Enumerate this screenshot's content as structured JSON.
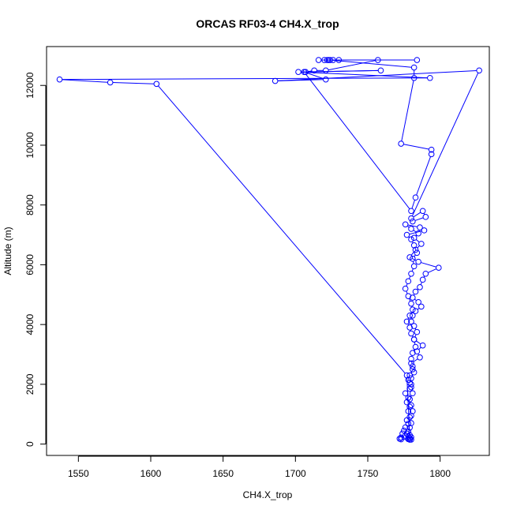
{
  "chart_data": {
    "type": "scatter",
    "title": "ORCAS RF03-4 CH4.X_trop",
    "xlabel": "CH4.X_trop",
    "ylabel": "Altitude (m)",
    "xlim": [
      1528,
      1834
    ],
    "ylim": [
      -380,
      13300
    ],
    "x_ticks": [
      1550,
      1600,
      1650,
      1700,
      1750,
      1800
    ],
    "y_ticks": [
      0,
      2000,
      4000,
      6000,
      8000,
      10000,
      12000
    ],
    "series": [
      {
        "marker": "open-circle",
        "line": true,
        "x": [
          1779,
          1778,
          1779,
          1780,
          1778,
          1779,
          1777,
          1778,
          1779,
          1780,
          1779,
          1778,
          1780,
          1779,
          1781,
          1780,
          1779,
          1780,
          1782,
          1781,
          1780,
          1781,
          1783,
          1782,
          1784,
          1782,
          1780,
          1781,
          1783,
          1787,
          1785,
          1781,
          1783,
          1786,
          1788,
          1790,
          1799,
          1785,
          1779,
          1783,
          1787,
          1782,
          1785,
          1780,
          1776,
          1786,
          1789,
          1777,
          1780,
          1782,
          1784,
          1781,
          1782,
          1780,
          1778,
          1776,
          1778,
          1780,
          1781,
          1779,
          1777,
          1779,
          1780,
          1782,
          1788,
          1784,
          1786,
          1780,
          1781,
          1779,
          1778,
          1780,
          1779,
          1776,
          1778,
          1777,
          1779,
          1781,
          1780,
          1777,
          1778,
          1776,
          1775,
          1774,
          1776,
          1773,
          1772,
          1773,
          1779,
          1780,
          1778,
          1779,
          1777,
          1604,
          1572,
          1537,
          1793,
          1702,
          1759,
          1707,
          1713,
          1721,
          1757,
          1784,
          1726,
          1716,
          1722,
          1720,
          1723,
          1730,
          1724,
          1782,
          1782,
          1773,
          1794,
          1794,
          1783,
          1780,
          1706,
          1721,
          1686,
          1827,
          1780,
          1788,
          1790,
          1781
        ],
        "y": [
          150,
          170,
          200,
          230,
          260,
          300,
          350,
          420,
          550,
          700,
          900,
          1100,
          1300,
          1500,
          1700,
          1900,
          2050,
          2200,
          2400,
          2600,
          2850,
          3050,
          3250,
          3500,
          3750,
          3950,
          4100,
          4300,
          4450,
          4600,
          4750,
          4900,
          5100,
          5250,
          5500,
          5700,
          5900,
          6100,
          6250,
          6500,
          6700,
          6900,
          7050,
          7200,
          7350,
          7250,
          7150,
          7000,
          6850,
          6650,
          6400,
          6200,
          5950,
          5700,
          5450,
          5200,
          4950,
          4700,
          4500,
          4300,
          4100,
          3900,
          3700,
          3500,
          3300,
          3100,
          2900,
          2700,
          2500,
          2300,
          2150,
          2000,
          1850,
          1700,
          1550,
          1400,
          1250,
          1100,
          950,
          800,
          680,
          560,
          450,
          350,
          280,
          220,
          180,
          160,
          150,
          150,
          170,
          200,
          2300,
          12050,
          12100,
          12200,
          12250,
          12450,
          12500,
          12450,
          12500,
          12500,
          12850,
          12850,
          12850,
          12850,
          12850,
          12850,
          12850,
          12850,
          12850,
          12600,
          12250,
          10050,
          9850,
          9700,
          8250,
          7800,
          12450,
          12200,
          12150,
          12500,
          7550,
          7800,
          7600,
          7450
        ]
      }
    ],
    "colors": {
      "series": "#0000ff",
      "axis": "#000000",
      "background": "#ffffff"
    },
    "grid": false,
    "legend": "none"
  }
}
